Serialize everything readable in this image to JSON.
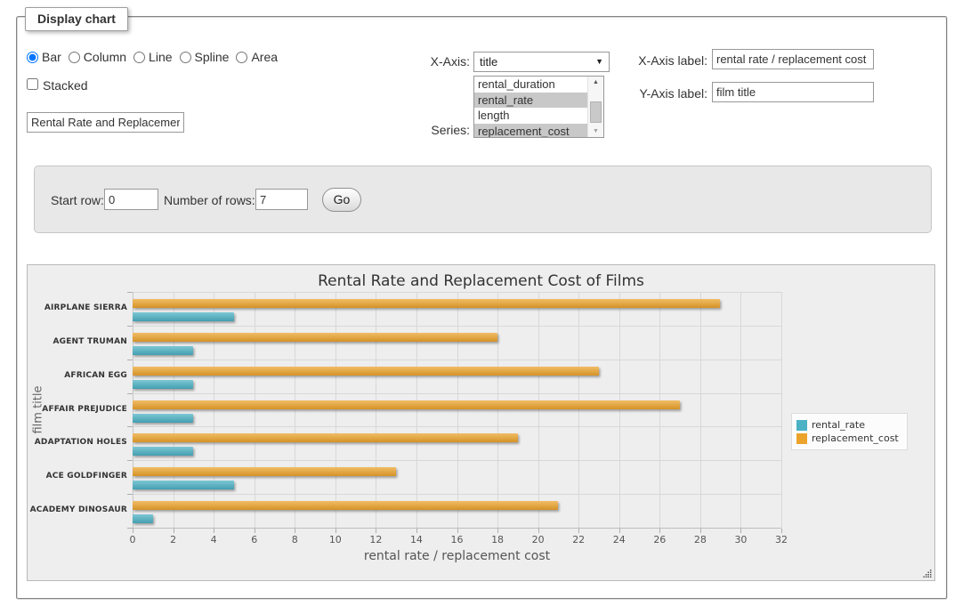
{
  "fieldset": {
    "legend": "Display chart"
  },
  "chart_type": {
    "options": [
      "Bar",
      "Column",
      "Line",
      "Spline",
      "Area"
    ],
    "selected": "Bar"
  },
  "stacked": {
    "label": "Stacked",
    "checked": false
  },
  "title_input": {
    "value": "Rental Rate and Replacemer"
  },
  "x_axis_select": {
    "label": "X-Axis:",
    "value": "title"
  },
  "series_select": {
    "label": "Series:",
    "options": [
      {
        "label": "rental_duration",
        "selected": false
      },
      {
        "label": "rental_rate",
        "selected": true
      },
      {
        "label": "length",
        "selected": false
      },
      {
        "label": "replacement_cost",
        "selected": true
      }
    ]
  },
  "x_axis_label_input": {
    "label": "X-Axis label:",
    "value": "rental rate / replacement cost"
  },
  "y_axis_label_input": {
    "label": "Y-Axis label:",
    "value": "film title"
  },
  "row_panel": {
    "start_row_label": "Start row:",
    "start_row_value": "0",
    "num_rows_label": "Number of rows:",
    "num_rows_value": "7",
    "go_label": "Go"
  },
  "chart_data": {
    "type": "bar",
    "title": "Rental Rate and Replacement Cost of Films",
    "categories": [
      "AIRPLANE SIERRA",
      "AGENT TRUMAN",
      "AFRICAN EGG",
      "AFFAIR PREJUDICE",
      "ADAPTATION HOLES",
      "ACE GOLDFINGER",
      "ACADEMY DINOSAUR"
    ],
    "series": [
      {
        "name": "rental_rate",
        "color": "#4bb1c4",
        "values": [
          4.99,
          2.99,
          2.99,
          2.99,
          2.99,
          4.99,
          0.99
        ]
      },
      {
        "name": "replacement_cost",
        "color": "#eca32b",
        "values": [
          28.99,
          17.99,
          22.99,
          26.99,
          18.99,
          12.99,
          20.99
        ]
      }
    ],
    "xlabel": "rental rate / replacement cost",
    "ylabel": "film title",
    "xlim": [
      0,
      32
    ],
    "x_ticks": [
      0,
      2,
      4,
      6,
      8,
      10,
      12,
      14,
      16,
      18,
      20,
      22,
      24,
      26,
      28,
      30,
      32
    ],
    "layout": {
      "grid": true,
      "legend_position": "right",
      "series_draw_order": [
        "replacement_cost",
        "rental_rate"
      ]
    }
  }
}
